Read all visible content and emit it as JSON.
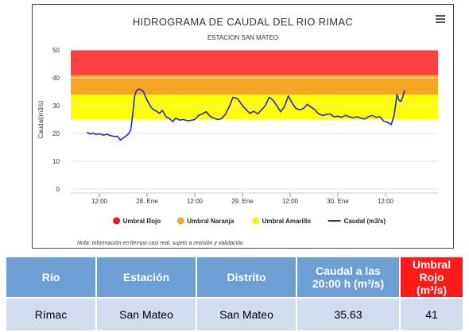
{
  "chart_data": {
    "type": "line",
    "title": "HIDROGRAMA DE CAUDAL DEL RIO RIMAC",
    "subtitle": "ESTACION SAN MATEO",
    "ylabel": "Caudal(m3/s)",
    "xlabel": "",
    "ylim": [
      0,
      50
    ],
    "y_ticks": [
      "0",
      "10",
      "20",
      "30",
      "40",
      "50"
    ],
    "x_ticks": [
      "12:00",
      "28. Ene",
      "12:00",
      "29. Ene",
      "12:00",
      "30. Ene",
      "12:00"
    ],
    "x_range": [
      -0.3,
      3.55
    ],
    "x_tick_positions": [
      0,
      0.5,
      1,
      1.5,
      2,
      2.5,
      3
    ],
    "bands": [
      {
        "name": "Umbral Amarillo",
        "from": 25,
        "to": 34,
        "color": "#ffff00"
      },
      {
        "name": "Umbral Naranja",
        "from": 34,
        "to": 41,
        "color": "#f5a623"
      },
      {
        "name": "Umbral Rojo",
        "from": 41,
        "to": 50,
        "color": "#ff4040"
      }
    ],
    "series": [
      {
        "name": "Caudal (m3/s)",
        "color": "#1c2bd6",
        "x": [
          -0.13,
          -0.1,
          -0.07,
          -0.03,
          0.0,
          0.04,
          0.08,
          0.12,
          0.16,
          0.19,
          0.22,
          0.25,
          0.27,
          0.29,
          0.31,
          0.33,
          0.35,
          0.37,
          0.39,
          0.42,
          0.46,
          0.5,
          0.54,
          0.57,
          0.6,
          0.63,
          0.66,
          0.7,
          0.74,
          0.77,
          0.8,
          0.84,
          0.88,
          0.92,
          0.96,
          1.0,
          1.04,
          1.08,
          1.12,
          1.16,
          1.2,
          1.24,
          1.28,
          1.32,
          1.36,
          1.4,
          1.45,
          1.5,
          1.54,
          1.58,
          1.62,
          1.66,
          1.7,
          1.74,
          1.78,
          1.82,
          1.86,
          1.9,
          1.94,
          1.98,
          2.02,
          2.06,
          2.1,
          2.14,
          2.18,
          2.22,
          2.26,
          2.3,
          2.34,
          2.38,
          2.42,
          2.46,
          2.5,
          2.54,
          2.58,
          2.62,
          2.66,
          2.7,
          2.74,
          2.78,
          2.82,
          2.86,
          2.9,
          2.94,
          2.98,
          3.02,
          3.06,
          3.09,
          3.12,
          3.14,
          3.16,
          3.18,
          3.2
        ],
        "y": [
          20.5,
          19.8,
          20.1,
          19.6,
          19.9,
          19.4,
          19.7,
          19.2,
          18.9,
          19.0,
          17.6,
          18.4,
          18.8,
          19.4,
          20.0,
          21.5,
          27.0,
          33.5,
          35.5,
          36.0,
          35.2,
          32.0,
          29.5,
          28.5,
          28.0,
          27.2,
          28.3,
          26.0,
          25.2,
          24.2,
          25.5,
          24.8,
          25.0,
          24.6,
          24.7,
          25.0,
          26.5,
          27.0,
          27.8,
          26.2,
          25.5,
          25.0,
          25.3,
          26.8,
          29.5,
          33.0,
          32.5,
          30.0,
          28.5,
          27.2,
          28.0,
          27.0,
          28.5,
          30.0,
          33.0,
          32.0,
          30.0,
          27.8,
          29.5,
          33.5,
          31.0,
          29.0,
          28.5,
          29.0,
          30.5,
          29.5,
          28.5,
          27.0,
          26.5,
          26.8,
          27.0,
          26.0,
          26.2,
          25.8,
          26.5,
          26.0,
          25.6,
          26.0,
          25.5,
          25.2,
          26.0,
          26.5,
          25.8,
          26.0,
          24.5,
          24.0,
          23.2,
          26.5,
          34.0,
          32.0,
          31.5,
          33.0,
          35.6
        ]
      }
    ],
    "legend": {
      "placement": "bottom",
      "items": [
        {
          "label": "Umbral Rojo",
          "marker": "dot",
          "color": "#e31b1b"
        },
        {
          "label": "Umbral Naranja",
          "marker": "dot",
          "color": "#f5a623"
        },
        {
          "label": "Umbral Amarillo",
          "marker": "dot",
          "color": "#f7f21a"
        },
        {
          "label": "Caudal (m3/s)",
          "marker": "line",
          "color": "#1c2bd6"
        }
      ]
    },
    "grid": true
  },
  "note": "Nota: Información en tiempo casi real, sujeto a revisión y validación",
  "table": {
    "headers": [
      "Río",
      "Estación",
      "Distrito",
      "Caudal a las 20:00 h (m³/s)",
      "Umbral Rojo (m³/s)"
    ],
    "rows": [
      [
        "Rímac",
        "San Mateo",
        "San Mateo",
        "35.63",
        "41"
      ]
    ]
  }
}
